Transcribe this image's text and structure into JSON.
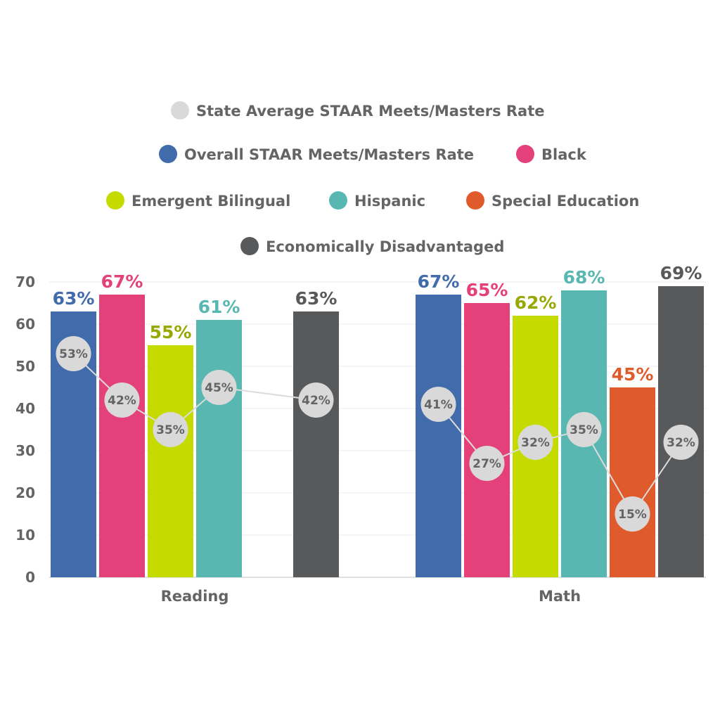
{
  "chart_data": {
    "type": "bar",
    "categories": [
      "Reading",
      "Math"
    ],
    "ylim": [
      0,
      70
    ],
    "yticks": [
      0,
      10,
      20,
      30,
      40,
      50,
      60,
      70
    ],
    "grid": true,
    "legend_position": "top",
    "series": [
      {
        "name": "Overall STAAR Meets/Masters Rate",
        "color": "#416BAA",
        "values": [
          63,
          67
        ],
        "labels": [
          "63%",
          "67%"
        ]
      },
      {
        "name": "Black",
        "color": "#E4417A",
        "values": [
          67,
          65
        ],
        "labels": [
          "67%",
          "65%"
        ]
      },
      {
        "name": "Emergent Bilingual",
        "color": "#C5DB00",
        "label_color": "#97A800",
        "values": [
          55,
          62
        ],
        "labels": [
          "55%",
          "62%"
        ]
      },
      {
        "name": "Hispanic",
        "color": "#58B7B1",
        "values": [
          61,
          68
        ],
        "labels": [
          "61%",
          "68%"
        ]
      },
      {
        "name": "Special Education",
        "color": "#E05B2B",
        "values": [
          null,
          45
        ],
        "labels": [
          "",
          "45%"
        ]
      },
      {
        "name": "Economically Disadvantaged",
        "color": "#58595B",
        "values": [
          63,
          69
        ],
        "labels": [
          "63%",
          "69%"
        ]
      }
    ],
    "state_average": {
      "name": "State Average STAAR Meets/Masters Rate",
      "color": "#D9D9D9",
      "values": [
        [
          53,
          42,
          35,
          45,
          null,
          42
        ],
        [
          41,
          27,
          32,
          35,
          15,
          32
        ]
      ],
      "labels": [
        [
          "53%",
          "42%",
          "35%",
          "45%",
          "",
          "42%"
        ],
        [
          "41%",
          "27%",
          "32%",
          "35%",
          "15%",
          "32%"
        ]
      ]
    },
    "legend_rows": [
      [
        "State Average STAAR Meets/Masters Rate"
      ],
      [
        "Overall STAAR Meets/Masters Rate",
        "Black"
      ],
      [
        "Emergent Bilingual",
        "Hispanic",
        "Special Education"
      ],
      [
        "Economically Disadvantaged"
      ]
    ]
  }
}
